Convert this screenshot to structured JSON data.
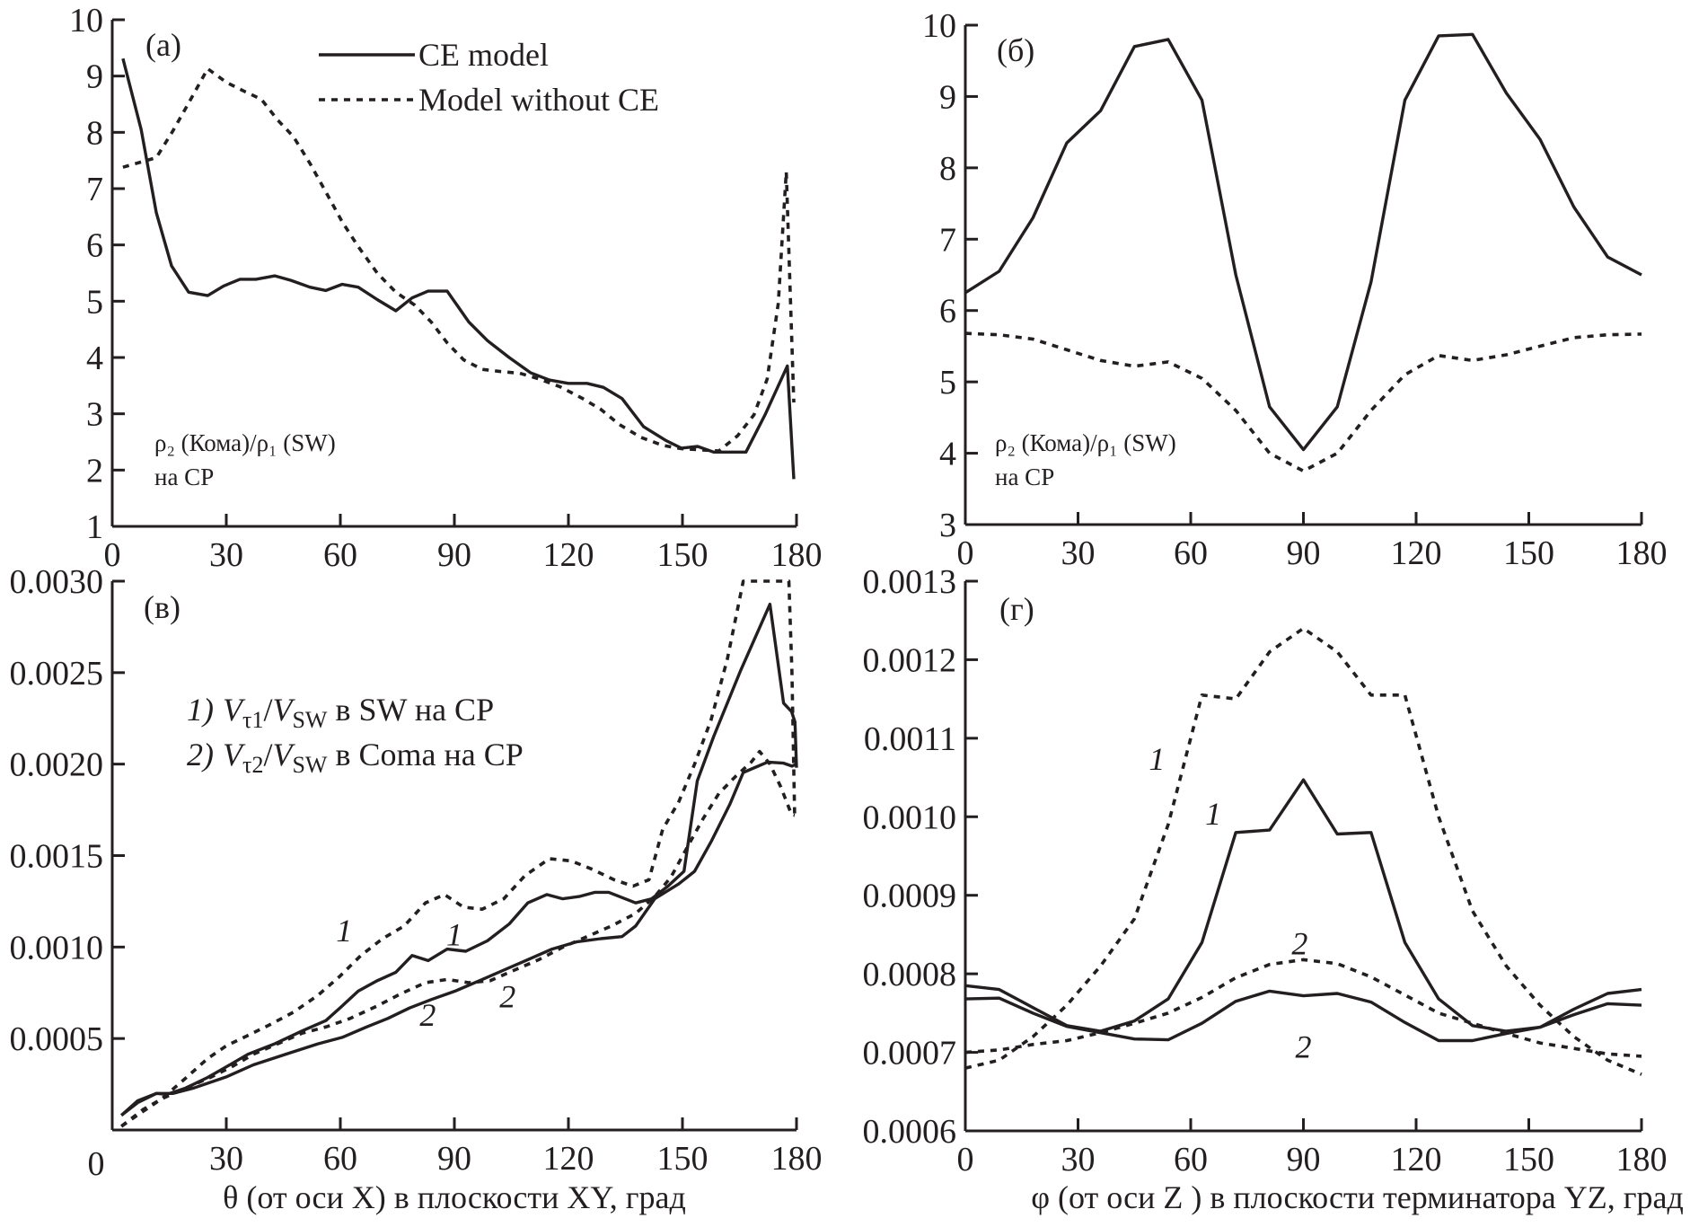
{
  "chart_data": [
    {
      "id": "a",
      "type": "line",
      "panel_label": "(a)",
      "title": "",
      "xlabel": "",
      "ylabel": "",
      "xlim": [
        0,
        180
      ],
      "ylim": [
        1,
        10
      ],
      "xticks": [
        0,
        30,
        60,
        90,
        120,
        150,
        180
      ],
      "yticks": [
        1,
        2,
        3,
        4,
        5,
        6,
        7,
        8,
        9,
        10
      ],
      "grid": false,
      "legend_position": "top-center",
      "annotation": {
        "line1": "ρ₂ (Кома)/ρ₁ (SW)",
        "line2": "на CP"
      },
      "series": [
        {
          "name": "CE model",
          "style": "solid",
          "x": [
            2.8,
            7.6,
            11.6,
            15.6,
            20.1,
            25.1,
            29.3,
            33.6,
            37.8,
            42.8,
            47,
            52,
            56.2,
            60.5,
            64.7,
            69.7,
            74.6,
            78.9,
            83.1,
            88.1,
            93.8,
            98.7,
            104.4,
            110,
            115,
            120,
            124.9,
            129.2,
            134.1,
            139.8,
            145.5,
            149.7,
            154,
            158.2,
            162.5,
            166.7,
            171.7,
            177.6,
            179.3
          ],
          "y": [
            9.31,
            8.05,
            6.57,
            5.63,
            5.16,
            5.1,
            5.27,
            5.39,
            5.39,
            5.45,
            5.37,
            5.25,
            5.19,
            5.3,
            5.25,
            5.03,
            4.83,
            5.06,
            5.18,
            5.18,
            4.63,
            4.3,
            4.0,
            3.73,
            3.6,
            3.54,
            3.54,
            3.47,
            3.27,
            2.77,
            2.53,
            2.39,
            2.42,
            2.32,
            2.32,
            2.32,
            2.98,
            3.85,
            1.84
          ]
        },
        {
          "name": "Model without CE",
          "style": "dashed",
          "x": [
            2.8,
            11.6,
            15.9,
            20.1,
            25.1,
            30,
            35,
            39.2,
            43.5,
            47.7,
            52,
            56.2,
            60.5,
            64.7,
            69.7,
            74.6,
            79.6,
            83.9,
            88.1,
            92.4,
            97.3,
            102.3,
            107.2,
            112.2,
            117.8,
            123.5,
            128.5,
            133.4,
            139.1,
            144.8,
            149.7,
            154.7,
            159.6,
            164.5,
            168.8,
            172.3,
            175.2,
            177.3,
            179.3
          ],
          "y": [
            7.38,
            7.55,
            8.02,
            8.52,
            9.13,
            8.89,
            8.72,
            8.59,
            8.22,
            7.92,
            7.45,
            6.94,
            6.41,
            5.97,
            5.5,
            5.16,
            4.93,
            4.63,
            4.26,
            3.96,
            3.79,
            3.75,
            3.72,
            3.62,
            3.48,
            3.28,
            3.08,
            2.81,
            2.58,
            2.44,
            2.38,
            2.36,
            2.34,
            2.61,
            2.98,
            3.62,
            4.96,
            7.3,
            3.2
          ]
        }
      ]
    },
    {
      "id": "b",
      "type": "line",
      "panel_label": "(б)",
      "title": "",
      "xlabel": "",
      "ylabel": "",
      "xlim": [
        0,
        180
      ],
      "ylim": [
        3,
        10
      ],
      "xticks": [
        0,
        30,
        60,
        90,
        120,
        150,
        180
      ],
      "yticks": [
        3,
        4,
        5,
        6,
        7,
        8,
        9,
        10
      ],
      "grid": false,
      "annotation": {
        "line1": "ρ₂ (Кома)/ρ₁ (SW)",
        "line2": "на CP"
      },
      "series": [
        {
          "name": "CE model",
          "style": "solid",
          "x": [
            0,
            9,
            18,
            27,
            36,
            45,
            54,
            63,
            72,
            81,
            90,
            99,
            108,
            117,
            126,
            135,
            144,
            153,
            162,
            171,
            180
          ],
          "y": [
            6.25,
            6.55,
            7.3,
            8.35,
            8.8,
            9.7,
            9.8,
            8.95,
            6.5,
            4.65,
            4.05,
            4.65,
            6.4,
            8.95,
            9.85,
            9.87,
            9.05,
            8.4,
            7.45,
            6.75,
            6.5
          ]
        },
        {
          "name": "Model without CE",
          "style": "dashed",
          "x": [
            0,
            9,
            18,
            27,
            36,
            45,
            54,
            63,
            72,
            81,
            90,
            99,
            108,
            117,
            126,
            135,
            144,
            153,
            162,
            171,
            180
          ],
          "y": [
            5.68,
            5.66,
            5.6,
            5.45,
            5.3,
            5.22,
            5.28,
            5.05,
            4.6,
            4.0,
            3.75,
            4.0,
            4.6,
            5.1,
            5.37,
            5.3,
            5.38,
            5.5,
            5.62,
            5.66,
            5.67
          ]
        }
      ]
    },
    {
      "id": "v",
      "type": "line",
      "panel_label": "(в)",
      "title": "",
      "xlabel": "θ (от оси X) в плоскости XY, град",
      "ylabel": "",
      "xlim": [
        0,
        180
      ],
      "ylim": [
        0,
        0.003
      ],
      "xticks": [
        0,
        30,
        60,
        90,
        120,
        150,
        180
      ],
      "yticks": [
        0.0005,
        0.001,
        0.0015,
        0.002,
        0.0025,
        0.003
      ],
      "ytick_labels": [
        "0.0005",
        "0.0010",
        "0.0015",
        "0.0020",
        "0.0025",
        "0.0030"
      ],
      "xtick_labels": [
        "0",
        "30",
        "60",
        "90",
        "120",
        "150",
        "180"
      ],
      "grid": false,
      "legend": [
        {
          "num": "1)",
          "v": "V",
          "sub1": "τ1",
          "slash": "/",
          "v2": "V",
          "sub2": "SW",
          "rest": " в SW на CP"
        },
        {
          "num": "2)",
          "v": "V",
          "sub1": "τ2",
          "slash": "/",
          "v2": "V",
          "sub2": "SW",
          "rest": " в Coma на CP"
        }
      ],
      "curve_labels": [
        {
          "text": "1",
          "x": 61,
          "y": 0.00103
        },
        {
          "text": "1",
          "x": 90,
          "y": 0.00101
        },
        {
          "text": "2",
          "x": 104,
          "y": 0.00067
        },
        {
          "text": "2",
          "x": 83,
          "y": 0.00057
        }
      ],
      "series": [
        {
          "name": "1 (CE model)",
          "style": "solid",
          "x": [
            2.4,
            6.7,
            11.6,
            14.4,
            19.4,
            25.1,
            30,
            35.7,
            42.8,
            49.9,
            56.2,
            60.5,
            64.7,
            69.7,
            74.6,
            78.9,
            83.1,
            88.1,
            93,
            98.7,
            104.4,
            109.3,
            114.3,
            118.5,
            122.8,
            127,
            130.6,
            137.7,
            141.9,
            146.2,
            150.4,
            153.9,
            158.2,
            165.2,
            173,
            176.6,
            178.7,
            179.6,
            180
          ],
          "y": [
            8e-05,
            0.00016,
            0.0002,
            0.000195,
            0.00023,
            0.000287,
            0.000345,
            0.000414,
            0.000472,
            0.000541,
            0.000598,
            0.000678,
            0.000759,
            0.000816,
            0.000862,
            0.000954,
            0.000926,
            0.000989,
            0.000977,
            0.001034,
            0.001126,
            0.001241,
            0.001287,
            0.001264,
            0.001276,
            0.001299,
            0.001299,
            0.001241,
            0.001264,
            0.001333,
            0.001414,
            0.001908,
            0.00215,
            0.002506,
            0.002874,
            0.002333,
            0.002287,
            0.00223,
            0.00198
          ]
        },
        {
          "name": "2 (CE model)",
          "style": "solid",
          "x": [
            2.4,
            6.7,
            11.6,
            15.9,
            21.5,
            30,
            37.1,
            45.6,
            54.1,
            60.5,
            66.9,
            72.5,
            78.2,
            83.9,
            90.2,
            96.6,
            103,
            109.3,
            115.7,
            122.1,
            128.5,
            134.1,
            137.7,
            142.7,
            149,
            153.2,
            157.5,
            162.5,
            166,
            172.4,
            176.6,
            178.8,
            180
          ],
          "y": [
            8e-05,
            0.00015,
            0.0002,
            0.0002,
            0.00023,
            0.00029,
            0.000356,
            0.000414,
            0.000471,
            0.000506,
            0.000563,
            0.00061,
            0.000667,
            0.000713,
            0.000759,
            0.000816,
            0.000874,
            0.000931,
            0.000989,
            0.001028,
            0.001046,
            0.001057,
            0.001115,
            0.001264,
            0.001345,
            0.001414,
            0.001575,
            0.001782,
            0.001954,
            0.002011,
            0.002005,
            0.001989,
            0.002
          ]
        },
        {
          "name": "1 (without CE)",
          "style": "dashed",
          "x": [
            2.4,
            8.1,
            13,
            19.4,
            25.1,
            30,
            35.7,
            41.4,
            47.7,
            54.1,
            59.8,
            65.4,
            71.1,
            76.8,
            82.4,
            87.4,
            92.4,
            97.3,
            103,
            108.6,
            115,
            120.7,
            126.3,
            132,
            137,
            141.2,
            144.8,
            149,
            153.2,
            157.5,
            161.8,
            166,
            178,
            178.8,
            179.5
          ],
          "y": [
            2e-05,
            0.000112,
            0.00017,
            0.000285,
            0.000391,
            0.00046,
            0.000517,
            0.000575,
            0.000644,
            0.000736,
            0.000839,
            0.000954,
            0.001046,
            0.001115,
            0.001241,
            0.001287,
            0.001218,
            0.001207,
            0.001264,
            0.001391,
            0.001483,
            0.001471,
            0.001425,
            0.001368,
            0.001333,
            0.001368,
            0.001644,
            0.001793,
            0.002,
            0.002241,
            0.002575,
            0.003,
            0.003,
            0.002506,
            0.001724
          ]
        },
        {
          "name": "2 (without CE)",
          "style": "dashed",
          "x": [
            2.4,
            7.4,
            13,
            19.4,
            25.8,
            31.4,
            37.1,
            43.5,
            49.9,
            56.2,
            62.6,
            69.7,
            76.1,
            82.4,
            88.1,
            93.8,
            99.4,
            105.8,
            112.2,
            118.6,
            124.9,
            131.3,
            137.7,
            142.7,
            146.9,
            151.1,
            155.4,
            159.6,
            163.9,
            168.1,
            170.3,
            173,
            175.9,
            178.7,
            179.5
          ],
          "y": [
            2e-05,
            9.2e-05,
            0.00017,
            0.00023,
            0.000287,
            0.000345,
            0.000414,
            0.000471,
            0.000529,
            0.000563,
            0.00061,
            0.000678,
            0.000747,
            0.000805,
            0.000823,
            0.000805,
            0.000816,
            0.000874,
            0.000931,
            0.001,
            0.001057,
            0.001115,
            0.001184,
            0.001276,
            0.00138,
            0.00154,
            0.001701,
            0.00184,
            0.001931,
            0.002011,
            0.002069,
            0.002,
            0.001874,
            0.001724,
            0.00172
          ]
        }
      ]
    },
    {
      "id": "g",
      "type": "line",
      "panel_label": "(г)",
      "title": "",
      "xlabel": "φ (от оси Z ) в плоскости терминатора YZ, град",
      "ylabel": "",
      "xlim": [
        0,
        180
      ],
      "ylim": [
        0.0006,
        0.0013
      ],
      "xticks": [
        0,
        30,
        60,
        90,
        120,
        150,
        180
      ],
      "yticks": [
        0.0006,
        0.0007,
        0.0008,
        0.0009,
        0.001,
        0.0011,
        0.0012,
        0.0013
      ],
      "ytick_labels": [
        "0.0006",
        "0.0007",
        "0.0008",
        "0.0009",
        "0.0010",
        "0.0011",
        "0.0012",
        "0.0013"
      ],
      "xtick_labels": [
        "0",
        "30",
        "60",
        "90",
        "120",
        "150",
        "180"
      ],
      "grid": false,
      "curve_labels": [
        {
          "text": "1",
          "x": 51,
          "y": 0.00106
        },
        {
          "text": "1",
          "x": 66,
          "y": 0.00099
        },
        {
          "text": "2",
          "x": 89,
          "y": 0.000825
        },
        {
          "text": "2",
          "x": 90,
          "y": 0.000693
        }
      ],
      "series": [
        {
          "name": "1 (CE model)",
          "style": "solid",
          "x": [
            0,
            9,
            18,
            27,
            36,
            45,
            54,
            63,
            72,
            81,
            90,
            99,
            108,
            117,
            126,
            135,
            144,
            153,
            162,
            171,
            180
          ],
          "y": [
            0.000785,
            0.00078,
            0.000757,
            0.000734,
            0.000727,
            0.00074,
            0.000768,
            0.00084,
            0.00098,
            0.000983,
            0.001047,
            0.000978,
            0.00098,
            0.00084,
            0.000768,
            0.000734,
            0.000727,
            0.000732,
            0.000755,
            0.000775,
            0.00078
          ]
        },
        {
          "name": "2 (CE model)",
          "style": "solid",
          "x": [
            0,
            9,
            18,
            27,
            36,
            45,
            54,
            63,
            72,
            81,
            90,
            99,
            108,
            117,
            126,
            135,
            144,
            153,
            162,
            171,
            180
          ],
          "y": [
            0.000768,
            0.000769,
            0.00075,
            0.000733,
            0.000725,
            0.000717,
            0.000716,
            0.000737,
            0.000765,
            0.000778,
            0.000772,
            0.000775,
            0.000764,
            0.000738,
            0.000715,
            0.000715,
            0.000724,
            0.000732,
            0.000748,
            0.000762,
            0.00076
          ]
        },
        {
          "name": "1 (without CE)",
          "style": "dashed",
          "x": [
            0,
            9,
            18,
            27,
            36,
            45,
            54,
            63,
            72,
            81,
            90,
            99,
            108,
            117,
            126,
            135,
            144,
            153,
            162,
            171,
            180
          ],
          "y": [
            0.00068,
            0.00069,
            0.00072,
            0.00076,
            0.00081,
            0.00087,
            0.00099,
            0.001155,
            0.00115,
            0.00121,
            0.00124,
            0.00121,
            0.001155,
            0.001155,
            0.001,
            0.00088,
            0.00081,
            0.00076,
            0.00072,
            0.00069,
            0.000672
          ]
        },
        {
          "name": "2 (without CE)",
          "style": "dashed",
          "x": [
            0,
            9,
            18,
            27,
            36,
            45,
            54,
            63,
            72,
            81,
            90,
            99,
            108,
            117,
            126,
            135,
            144,
            153,
            162,
            171,
            180
          ],
          "y": [
            0.0007,
            0.000703,
            0.00071,
            0.000715,
            0.000725,
            0.000737,
            0.00075,
            0.00077,
            0.000795,
            0.000812,
            0.000818,
            0.000813,
            0.000796,
            0.000773,
            0.00075,
            0.000737,
            0.000724,
            0.000712,
            0.000705,
            0.000698,
            0.000695
          ]
        }
      ]
    }
  ],
  "legend_a": [
    {
      "label": "CE model",
      "style": "solid"
    },
    {
      "label": "Model without CE",
      "style": "dashed"
    }
  ]
}
